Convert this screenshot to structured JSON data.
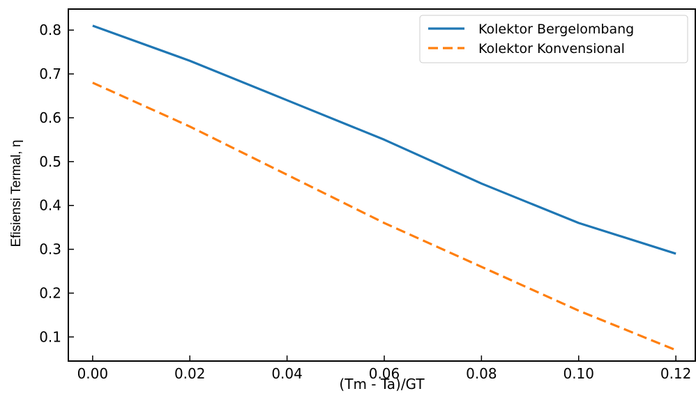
{
  "chart_data": {
    "type": "line",
    "title": "",
    "xlabel": "(Tm - Ta)/GT",
    "ylabel": "Efisiensi Termal, η",
    "x": [
      0.0,
      0.02,
      0.04,
      0.06,
      0.08,
      0.1,
      0.12
    ],
    "xlim": [
      -0.005,
      0.124
    ],
    "ylim": [
      0.045,
      0.848
    ],
    "xticks": [
      0.0,
      0.02,
      0.04,
      0.06,
      0.08,
      0.1,
      0.12
    ],
    "xtick_labels": [
      "0.00",
      "0.02",
      "0.04",
      "0.06",
      "0.08",
      "0.10",
      "0.12"
    ],
    "yticks": [
      0.1,
      0.2,
      0.3,
      0.4,
      0.5,
      0.6,
      0.7,
      0.8
    ],
    "ytick_labels": [
      "0.1",
      "0.2",
      "0.3",
      "0.4",
      "0.5",
      "0.6",
      "0.7",
      "0.8"
    ],
    "grid": false,
    "legend_position": "top-right",
    "series": [
      {
        "name": "Kolektor Bergelombang",
        "values": [
          0.81,
          0.73,
          0.64,
          0.55,
          0.45,
          0.36,
          0.29
        ],
        "color": "#1f77b4",
        "style": "solid"
      },
      {
        "name": "Kolektor Konvensional",
        "values": [
          0.68,
          0.58,
          0.47,
          0.36,
          0.26,
          0.16,
          0.07
        ],
        "color": "#ff7f0e",
        "style": "dashed"
      }
    ]
  }
}
